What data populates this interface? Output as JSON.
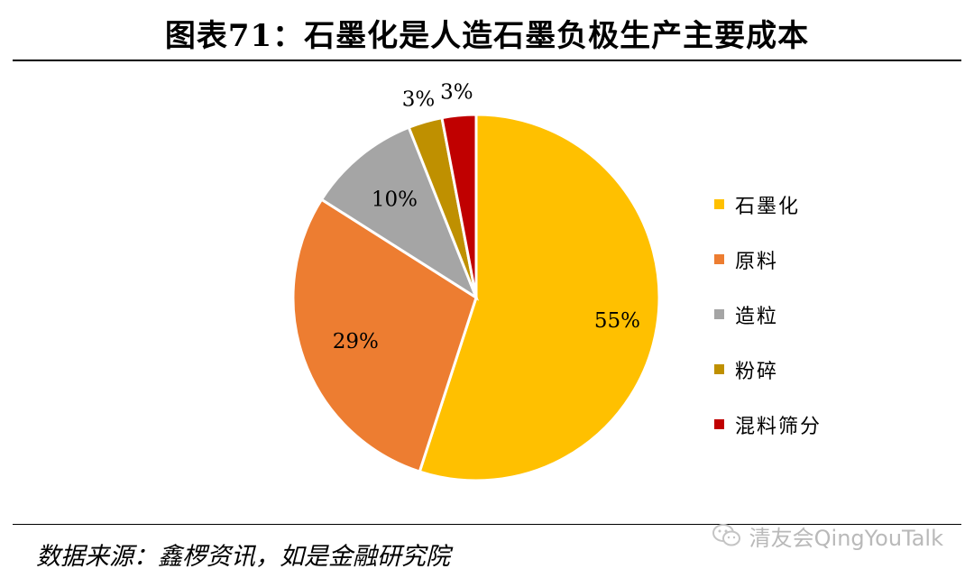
{
  "header": {
    "title": "图表71：石墨化是人造石墨负极生产主要成本"
  },
  "footer": {
    "source": "数据来源：鑫椤资讯，如是金融研究院"
  },
  "watermark": {
    "text": "清友会QingYouTalk",
    "icon": "wechat-icon"
  },
  "chart_data": {
    "type": "pie",
    "title": "",
    "slices": [
      {
        "label": "石墨化",
        "value": 55,
        "value_label": "55%",
        "color": "#FFC000"
      },
      {
        "label": "原料",
        "value": 29,
        "value_label": "29%",
        "color": "#ED7D31"
      },
      {
        "label": "造粒",
        "value": 10,
        "value_label": "10%",
        "color": "#A5A5A5"
      },
      {
        "label": "粉碎",
        "value": 3,
        "value_label": "3%",
        "color": "#BF9000"
      },
      {
        "label": "混料筛分",
        "value": 3,
        "value_label": "3%",
        "color": "#C00000"
      }
    ],
    "legend_position": "right"
  }
}
